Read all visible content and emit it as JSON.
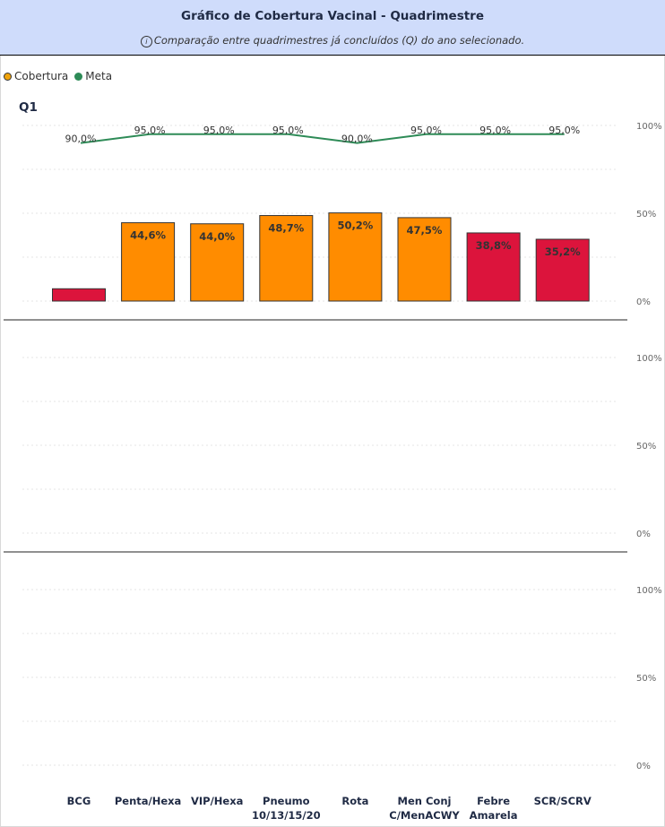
{
  "header": {
    "title": "Gráfico de Cobertura Vacinal - Quadrimestre",
    "subtitle": "Comparação entre quadrimestres já concluídos (Q) do ano selecionado.",
    "info_icon": "info-icon"
  },
  "legend": {
    "items": [
      {
        "label": "Cobertura",
        "color": "#f0a30a"
      },
      {
        "label": "Meta",
        "color": "#2e8b57"
      }
    ]
  },
  "colors": {
    "above_threshold": "#ff8c00",
    "below_threshold": "#dc143c",
    "meta_line": "#2e8b57"
  },
  "chart_data": {
    "type": "bar",
    "categories": [
      "BCG",
      "Penta/Hexa",
      "VIP/Hexa",
      "Pneumo 10/13/15/20",
      "Rota",
      "Men Conj C/MenACWY",
      "Febre Amarela",
      "SCR/SCRV"
    ],
    "category_lines": [
      [
        "BCG"
      ],
      [
        "Penta/Hexa"
      ],
      [
        "VIP/Hexa"
      ],
      [
        "Pneumo",
        "10/13/15/20"
      ],
      [
        "Rota"
      ],
      [
        "Men Conj",
        "C/MenACWY"
      ],
      [
        "Febre",
        "Amarela"
      ],
      [
        "SCR/SCRV"
      ]
    ],
    "panels": [
      {
        "label": "Q1",
        "series": [
          {
            "name": "Cobertura",
            "values": [
              7.0,
              44.6,
              44.0,
              48.7,
              50.2,
              47.5,
              38.8,
              35.2
            ],
            "labels": [
              "",
              "44,6%",
              "44,0%",
              "48,7%",
              "50,2%",
              "47,5%",
              "38,8%",
              "35,2%"
            ],
            "colors": [
              "#dc143c",
              "#ff8c00",
              "#ff8c00",
              "#ff8c00",
              "#ff8c00",
              "#ff8c00",
              "#dc143c",
              "#dc143c"
            ]
          },
          {
            "name": "Meta",
            "values": [
              90.0,
              95.0,
              95.0,
              95.0,
              90.0,
              95.0,
              95.0,
              95.0
            ],
            "labels": [
              "90,0%",
              "95,0%",
              "95,0%",
              "95,0%",
              "90,0%",
              "95,0%",
              "95,0%",
              "95,0%"
            ]
          }
        ]
      },
      {
        "label": "",
        "series": []
      },
      {
        "label": "",
        "series": []
      }
    ],
    "y_ticks": [
      "0%",
      "50%",
      "100%"
    ],
    "ylim": [
      0,
      100
    ],
    "grid": true,
    "legend_position": "top-left"
  }
}
